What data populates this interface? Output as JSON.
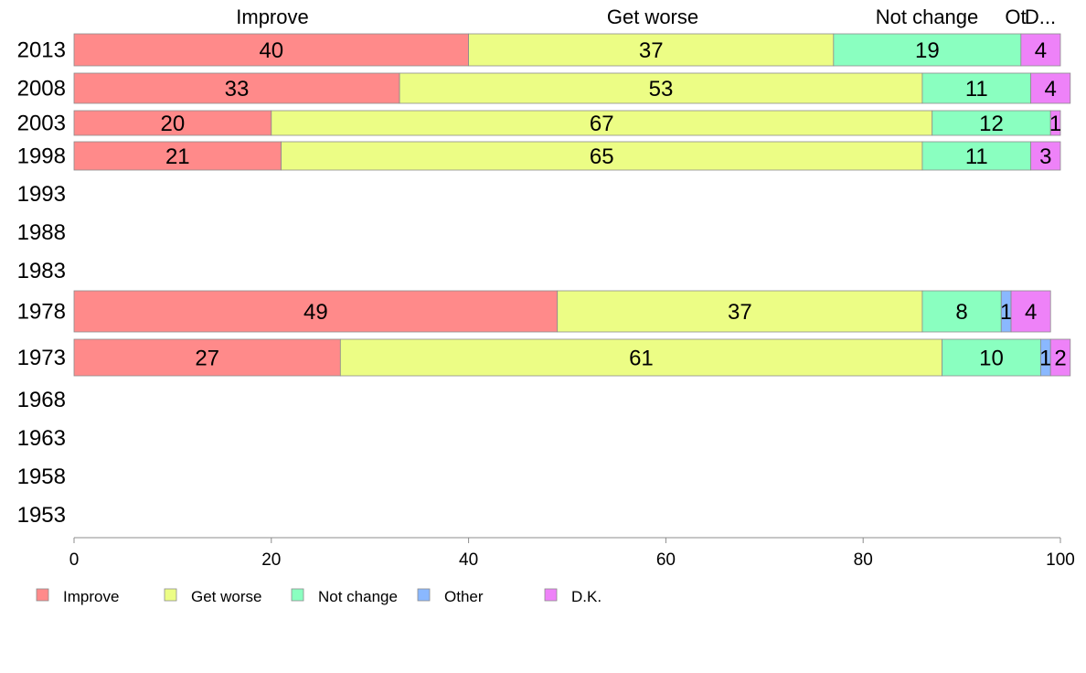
{
  "chart_data": {
    "type": "bar",
    "orientation": "horizontal",
    "stacked": true,
    "xlim": [
      0,
      100
    ],
    "x_ticks": [
      "0",
      "20",
      "40",
      "60",
      "80",
      "100"
    ],
    "categories": [
      "2013",
      "2008",
      "2003",
      "1998",
      "1993",
      "1988",
      "1983",
      "1978",
      "1973",
      "1968",
      "1963",
      "1958",
      "1953"
    ],
    "column_headers": [
      "Improve",
      "Get worse",
      "Not change",
      "Ot",
      "D..."
    ],
    "series": [
      {
        "name": "Improve",
        "color": "#ff8a8a",
        "values": [
          40,
          33,
          20,
          21,
          null,
          null,
          null,
          49,
          27,
          null,
          null,
          null,
          null
        ]
      },
      {
        "name": "Get worse",
        "color": "#ecfd85",
        "values": [
          37,
          53,
          67,
          65,
          null,
          null,
          null,
          37,
          61,
          null,
          null,
          null,
          null
        ]
      },
      {
        "name": "Not change",
        "color": "#8affc0",
        "values": [
          19,
          11,
          12,
          11,
          null,
          null,
          null,
          8,
          10,
          null,
          null,
          null,
          null
        ]
      },
      {
        "name": "Other",
        "color": "#8ab8ff",
        "values": [
          0,
          0,
          0,
          0,
          null,
          null,
          null,
          1,
          1,
          null,
          null,
          null,
          null
        ]
      },
      {
        "name": "D.K.",
        "color": "#ee82f8",
        "values": [
          4,
          4,
          1,
          3,
          null,
          null,
          null,
          4,
          2,
          null,
          null,
          null,
          null
        ]
      }
    ],
    "legend_position": "bottom",
    "grid": false
  }
}
